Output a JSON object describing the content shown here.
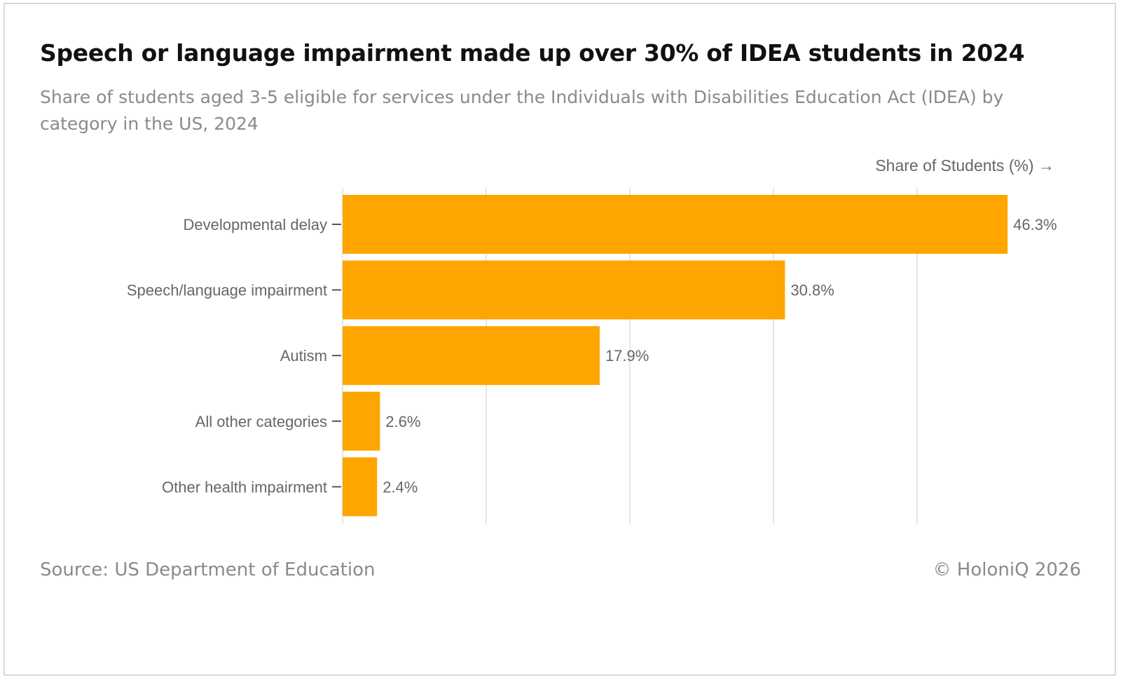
{
  "header": {
    "title": "Speech or language impairment made up over 30% of IDEA students in 2024",
    "subtitle": "Share of students aged 3-5 eligible for services under the Individuals with Disabilities Education Act (IDEA) by category in the US, 2024"
  },
  "footer": {
    "source": "Source: US Department of Education",
    "copyright": "© HoloniQ 2026"
  },
  "colors": {
    "bar": "#FFA500",
    "grid": "#e6e6e6",
    "label": "#666666",
    "tick": "#555555"
  },
  "chart_data": {
    "type": "bar",
    "orientation": "horizontal",
    "title": "Speech or language impairment made up over 30% of IDEA students in 2024",
    "xlabel": "Share of Students (%) →",
    "ylabel": "",
    "xlim": [
      0,
      50
    ],
    "grid": true,
    "categories": [
      "Developmental delay",
      "Speech/language impairment",
      "Autism",
      "All other categories",
      "Other health impairment"
    ],
    "values": [
      46.3,
      30.8,
      17.9,
      2.6,
      2.4
    ],
    "value_labels": [
      "46.3%",
      "30.8%",
      "17.9%",
      "2.6%",
      "2.4%"
    ]
  }
}
